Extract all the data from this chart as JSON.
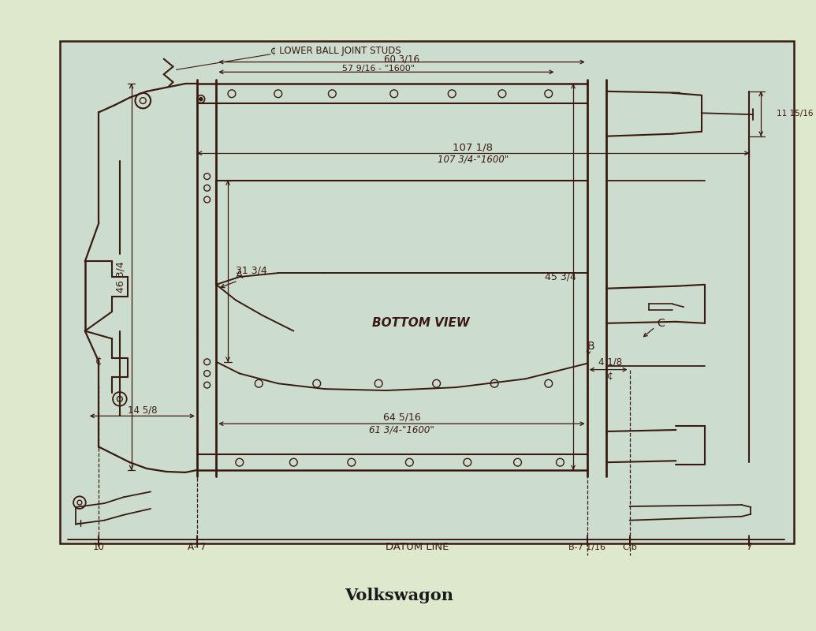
{
  "bg_outer": "#dde8cc",
  "bg_inner": "#ccddd0",
  "line_color": "#3a1a10",
  "title": "Volkswagon",
  "title_fontsize": 15,
  "annotations": {
    "lower_ball_joint": "¢ LOWER BALL JOINT STUDS",
    "dim_60_3_16": "60 3/16",
    "dim_57_9_16": "57 9/16 - \"1600\"",
    "dim_107_1_8": "107 1/8",
    "dim_107_3_4": "107 3/4-\"1600\"",
    "dim_46_3_4": "46 3/4",
    "dim_31_3_4": "31 3/4",
    "dim_45_3_4": "45 3/4",
    "dim_11_15_16": "11 15/16",
    "dim_14_5_8": "14 5/8",
    "dim_4_1_8": "4 1/8",
    "dim_64_5_16": "64 5/16",
    "dim_61_3_4": "61 3/4-\"1600\"",
    "bottom_view": "BOTTOM VIEW",
    "datum_line": "DATUM LINE",
    "label_10": "10",
    "label_A7": "A- 7",
    "label_B7": "B-7 1/16",
    "label_C6": "C-b",
    "label_7": "7"
  }
}
